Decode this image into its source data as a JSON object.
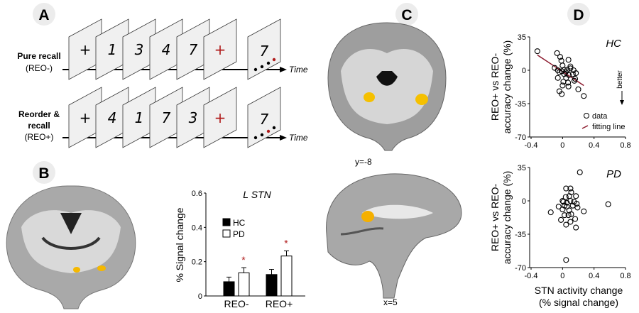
{
  "panels": {
    "a": "A",
    "b": "B",
    "c": "C",
    "d": "D"
  },
  "panel_a": {
    "rows": [
      {
        "label1": "Pure recall",
        "label2": "",
        "label3": "(REO-)",
        "symbols": [
          "+",
          "1",
          "3",
          "4",
          "7",
          "+"
        ],
        "probe": "7",
        "probe_red_dot": 3
      },
      {
        "label1": "Reorder &",
        "label2": "recall",
        "label3": "(REO+)",
        "symbols": [
          "+",
          "4",
          "1",
          "7",
          "3",
          "+"
        ],
        "probe": "7",
        "probe_red_dot": 2
      }
    ],
    "time_label": "Time",
    "colors": {
      "cue": "#b01c1c",
      "slide": "#f0f0f0"
    }
  },
  "panel_c": {
    "coronal_label": "y=-8",
    "sagittal_label": "x=5"
  },
  "chart_data": [
    {
      "type": "bar",
      "title": "L STN",
      "ylabel": "% Signal change",
      "ylim": [
        0,
        0.6
      ],
      "yticks": [
        "0",
        "0.2",
        "0.4",
        "0.6"
      ],
      "categories": [
        "REO-",
        "REO+"
      ],
      "series": [
        {
          "name": "HC",
          "values": [
            0.083,
            0.125
          ],
          "errors": [
            0.027,
            0.03
          ],
          "color": "#000000"
        },
        {
          "name": "PD",
          "values": [
            0.135,
            0.233
          ],
          "errors": [
            0.03,
            0.03
          ],
          "color": "#ffffff"
        }
      ],
      "significance": [
        "*",
        "*"
      ]
    },
    {
      "type": "scatter",
      "title": "HC",
      "ylabel_line1": "REO+ vs REO-",
      "ylabel_line2": "accuracy change (%)",
      "xlim": [
        -0.4,
        0.8
      ],
      "ylim": [
        -70,
        35
      ],
      "xticks": [
        "-0.4",
        "0",
        "0.4",
        "0.8"
      ],
      "yticks": [
        "35",
        "0",
        "-35",
        "-70"
      ],
      "legend": {
        "data": "data",
        "fit": "fitting line"
      },
      "annotation": "better",
      "fit_line": [
        [
          -0.32,
          16
        ],
        [
          0.27,
          -16
        ]
      ],
      "points": [
        [
          -0.32,
          20
        ],
        [
          -0.07,
          18
        ],
        [
          -0.03,
          14
        ],
        [
          -0.015,
          10
        ],
        [
          0.075,
          11
        ],
        [
          -0.1,
          2.5
        ],
        [
          -0.06,
          0
        ],
        [
          0,
          5
        ],
        [
          0.02,
          0.5
        ],
        [
          -0.01,
          -1
        ],
        [
          0.06,
          0.5
        ],
        [
          0.1,
          2
        ],
        [
          0.1,
          4
        ],
        [
          0.14,
          0
        ],
        [
          0.17,
          -3
        ],
        [
          0.13,
          -4
        ],
        [
          0.08,
          -5
        ],
        [
          0.045,
          -8
        ],
        [
          0.02,
          -4
        ],
        [
          -0.06,
          -8
        ],
        [
          0.01,
          -12
        ],
        [
          0.07,
          -13
        ],
        [
          0.15,
          -11
        ],
        [
          0.16,
          -9
        ],
        [
          0,
          -16
        ],
        [
          0.075,
          -17
        ],
        [
          -0.04,
          -22
        ],
        [
          -0.01,
          -25
        ],
        [
          0.2,
          -20
        ],
        [
          0.27,
          -27
        ],
        [
          0.04,
          -2
        ],
        [
          -0.04,
          -2
        ]
      ]
    },
    {
      "type": "scatter",
      "title": "PD",
      "ylabel_line1": "REO+ vs REO-",
      "ylabel_line2": "accuracy change (%)",
      "xlabel_line1": "STN activity change",
      "xlabel_line2": "(% signal change)",
      "xlim": [
        -0.4,
        0.8
      ],
      "ylim": [
        -70,
        35
      ],
      "xticks": [
        "-0.4",
        "0",
        "0.4",
        "0.8"
      ],
      "yticks": [
        "35",
        "0",
        "-35",
        "-70"
      ],
      "points": [
        [
          0.22,
          30
        ],
        [
          0.58,
          -3.5
        ],
        [
          -0.15,
          -12
        ],
        [
          0.27,
          -11
        ],
        [
          0.045,
          -62
        ],
        [
          0.17,
          -28
        ],
        [
          0.045,
          -25
        ],
        [
          0.1,
          -22
        ],
        [
          -0.02,
          -20
        ],
        [
          0.16,
          -19
        ],
        [
          0.045,
          13
        ],
        [
          0.1,
          13
        ],
        [
          0.11,
          9
        ],
        [
          0.17,
          5
        ],
        [
          0.01,
          -1
        ],
        [
          0.04,
          4
        ],
        [
          0.085,
          5
        ],
        [
          -0.05,
          -6
        ],
        [
          0,
          -9
        ],
        [
          0.055,
          -6
        ],
        [
          0.085,
          -10
        ],
        [
          0.13,
          -5
        ],
        [
          0.19,
          -7
        ],
        [
          0.025,
          -15
        ],
        [
          0.075,
          -15
        ],
        [
          0.11,
          -14
        ],
        [
          0.145,
          -1
        ],
        [
          0.18,
          -3
        ],
        [
          0,
          0
        ],
        [
          0.055,
          -2
        ],
        [
          0.1,
          0
        ],
        [
          0.025,
          -5
        ]
      ]
    }
  ]
}
